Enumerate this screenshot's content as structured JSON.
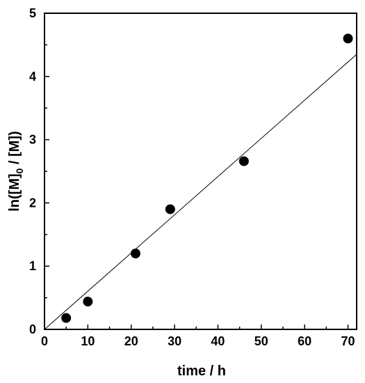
{
  "chart_data": {
    "type": "scatter",
    "xlabel": "time / h",
    "ylabel": {
      "prefix": "ln([M]",
      "subscript": "0",
      "suffix": " / [M])"
    },
    "xlim": [
      0,
      72
    ],
    "ylim": [
      0,
      5
    ],
    "xticks": [
      0,
      10,
      20,
      30,
      40,
      50,
      60,
      70
    ],
    "yticks": [
      0,
      1,
      2,
      3,
      4,
      5
    ],
    "grid": false,
    "series": [
      {
        "x": [
          5,
          10,
          21,
          29,
          46,
          70
        ],
        "y": [
          0.18,
          0.44,
          1.2,
          1.9,
          2.66,
          4.6
        ]
      }
    ],
    "fit_line": {
      "x": [
        0,
        72
      ],
      "y": [
        0,
        4.35
      ]
    }
  }
}
